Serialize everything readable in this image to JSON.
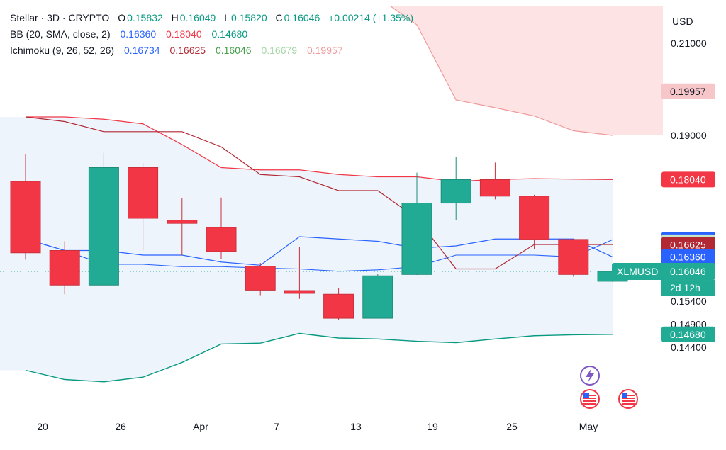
{
  "legend": {
    "symbol": "Stellar · 3D · CRYPTO",
    "o_label": "O",
    "o_value": "0.15832",
    "h_label": "H",
    "h_value": "0.16049",
    "l_label": "L",
    "l_value": "0.15820",
    "c_label": "C",
    "c_value": "0.16046",
    "change": "+0.00214 (+1.35%)",
    "bb_label": "BB (20, SMA, close, 2)",
    "bb_basis": "0.16360",
    "bb_upper": "0.18040",
    "bb_lower": "0.14680",
    "ichi_label": "Ichimoku (9, 26, 52, 26)",
    "ichi_conversion": "0.16734",
    "ichi_base": "0.16625",
    "ichi_lagging": "0.16046",
    "ichi_spanA": "0.16679",
    "ichi_spanB": "0.19957"
  },
  "currency": "USD",
  "colors": {
    "up": "#22ab94",
    "up_dark": "#1e8c78",
    "down": "#f23645",
    "down_dark": "#c9303c",
    "bb_line": "#2962ff",
    "bb_upper_line": "#f23645",
    "bb_lower_line": "#089981",
    "bb_fill": "#e8f1fb",
    "cloud_fill": "#fde3e3",
    "base_line": "#b22833",
    "span_b_line": "#ef9a9a",
    "grid": "#f0f3fa",
    "axis_text": "#131722"
  },
  "chart_data": {
    "type": "candlestick",
    "symbol": "XLMUSD",
    "y_ticks": [
      0.21,
      0.19,
      0.154,
      0.149,
      0.144
    ],
    "x_ticks": [
      "20",
      "26",
      "Apr",
      "7",
      "13",
      "19",
      "25",
      "May"
    ],
    "candles": [
      {
        "o": 0.18,
        "h": 0.186,
        "l": 0.163,
        "c": 0.1645
      },
      {
        "o": 0.165,
        "h": 0.167,
        "l": 0.1555,
        "c": 0.1575
      },
      {
        "o": 0.1575,
        "h": 0.1862,
        "l": 0.1573,
        "c": 0.183
      },
      {
        "o": 0.183,
        "h": 0.184,
        "l": 0.165,
        "c": 0.172
      },
      {
        "o": 0.1716,
        "h": 0.1763,
        "l": 0.164,
        "c": 0.1709
      },
      {
        "o": 0.17,
        "h": 0.1765,
        "l": 0.1632,
        "c": 0.1648
      },
      {
        "o": 0.1616,
        "h": 0.1623,
        "l": 0.1553,
        "c": 0.1564
      },
      {
        "o": 0.1563,
        "h": 0.1657,
        "l": 0.1545,
        "c": 0.1557
      },
      {
        "o": 0.1555,
        "h": 0.1569,
        "l": 0.1499,
        "c": 0.1503
      },
      {
        "o": 0.1503,
        "h": 0.16,
        "l": 0.1503,
        "c": 0.1595
      },
      {
        "o": 0.1598,
        "h": 0.1819,
        "l": 0.1597,
        "c": 0.1753
      },
      {
        "o": 0.1753,
        "h": 0.1853,
        "l": 0.1717,
        "c": 0.1804
      },
      {
        "o": 0.1804,
        "h": 0.1841,
        "l": 0.1761,
        "c": 0.1768
      },
      {
        "o": 0.1768,
        "h": 0.1771,
        "l": 0.1653,
        "c": 0.1674
      },
      {
        "o": 0.1674,
        "h": 0.1672,
        "l": 0.1593,
        "c": 0.1598
      },
      {
        "o": 0.15832,
        "h": 0.16049,
        "l": 0.1582,
        "c": 0.16046
      }
    ],
    "bb_basis": [
      0.1675,
      0.165,
      0.165,
      0.164,
      0.164,
      0.1625,
      0.1618,
      0.168,
      0.1675,
      0.167,
      0.1655,
      0.166,
      0.1675,
      0.1675,
      0.1675,
      0.1636
    ],
    "bb_upper": [
      0.194,
      0.194,
      0.1935,
      0.1925,
      0.188,
      0.183,
      0.1825,
      0.1825,
      0.1815,
      0.181,
      0.181,
      0.18,
      0.1804,
      0.1806,
      0.1805,
      0.1804
    ],
    "bb_lower": [
      0.139,
      0.137,
      0.1365,
      0.1375,
      0.1407,
      0.1447,
      0.1449,
      0.147,
      0.146,
      0.1458,
      0.1453,
      0.145,
      0.1458,
      0.1465,
      0.1467,
      0.1468
    ],
    "ichimoku_conversion": [
      0.1675,
      0.165,
      0.162,
      0.162,
      0.1615,
      0.1615,
      0.1612,
      0.161,
      0.1605,
      0.1608,
      0.1615,
      0.164,
      0.164,
      0.164,
      0.1636,
      0.16734
    ],
    "ichimoku_base": [
      0.202,
      0.1935,
      0.195,
      0.191,
      0.185,
      0.1825,
      0.182,
      0.1815,
      0.1818,
      0.181,
      0.181,
      0.1818,
      0.182,
      0.182,
      0.182,
      0.16625
    ],
    "ichimoku_base_line": [
      0.194,
      0.193,
      0.1908,
      0.1908,
      0.1908,
      0.1875,
      0.1815,
      0.181,
      0.178,
      0.178,
      0.172,
      0.161,
      0.161,
      0.1663,
      0.1663,
      0.1663
    ],
    "ichimoku_span_b_upper": [
      0.22,
      0.22,
      0.22,
      0.22,
      0.22,
      0.22,
      0.22,
      0.22,
      0.22,
      0.22,
      0.214,
      0.1977,
      0.196,
      0.1942,
      0.191,
      0.19
    ],
    "ichimoku_span_b_line": [
      0.22,
      0.22,
      0.22,
      0.22,
      0.22,
      0.22,
      0.22,
      0.22,
      0.22,
      0.22,
      0.214,
      0.1977,
      0.196,
      0.1942,
      0.191,
      0.19
    ],
    "price_labels": [
      {
        "label": "0.19957",
        "value": 0.19957,
        "bg": "#f7c6c9",
        "fg": "#131722"
      },
      {
        "label": "0.18040",
        "value": 0.1804,
        "bg": "#f23645",
        "fg": "#ffffff"
      },
      {
        "label": "0.16734",
        "value": 0.16734,
        "bg": "#2962ff",
        "fg": "#ffffff"
      },
      {
        "label": "0.16679",
        "value": 0.16679,
        "bg": "#c8e6c9",
        "fg": "#131722"
      },
      {
        "label": "0.16625",
        "value": 0.16625,
        "bg": "#b22833",
        "fg": "#ffffff"
      },
      {
        "label": "0.16360",
        "value": 0.1636,
        "bg": "#2962ff",
        "fg": "#ffffff"
      },
      {
        "label": "0.16046",
        "value": 0.16046,
        "bg": "#43a047",
        "fg": "#ffffff"
      },
      {
        "label": "0.14680",
        "value": 0.1468,
        "bg": "#22ab94",
        "fg": "#ffffff"
      }
    ],
    "last_price": {
      "label": "0.16046",
      "value": 0.16046
    },
    "countdown": "2d 12h",
    "symbol_tag": "XLMUSD",
    "y_range": [
      0.1405,
      0.22
    ]
  }
}
